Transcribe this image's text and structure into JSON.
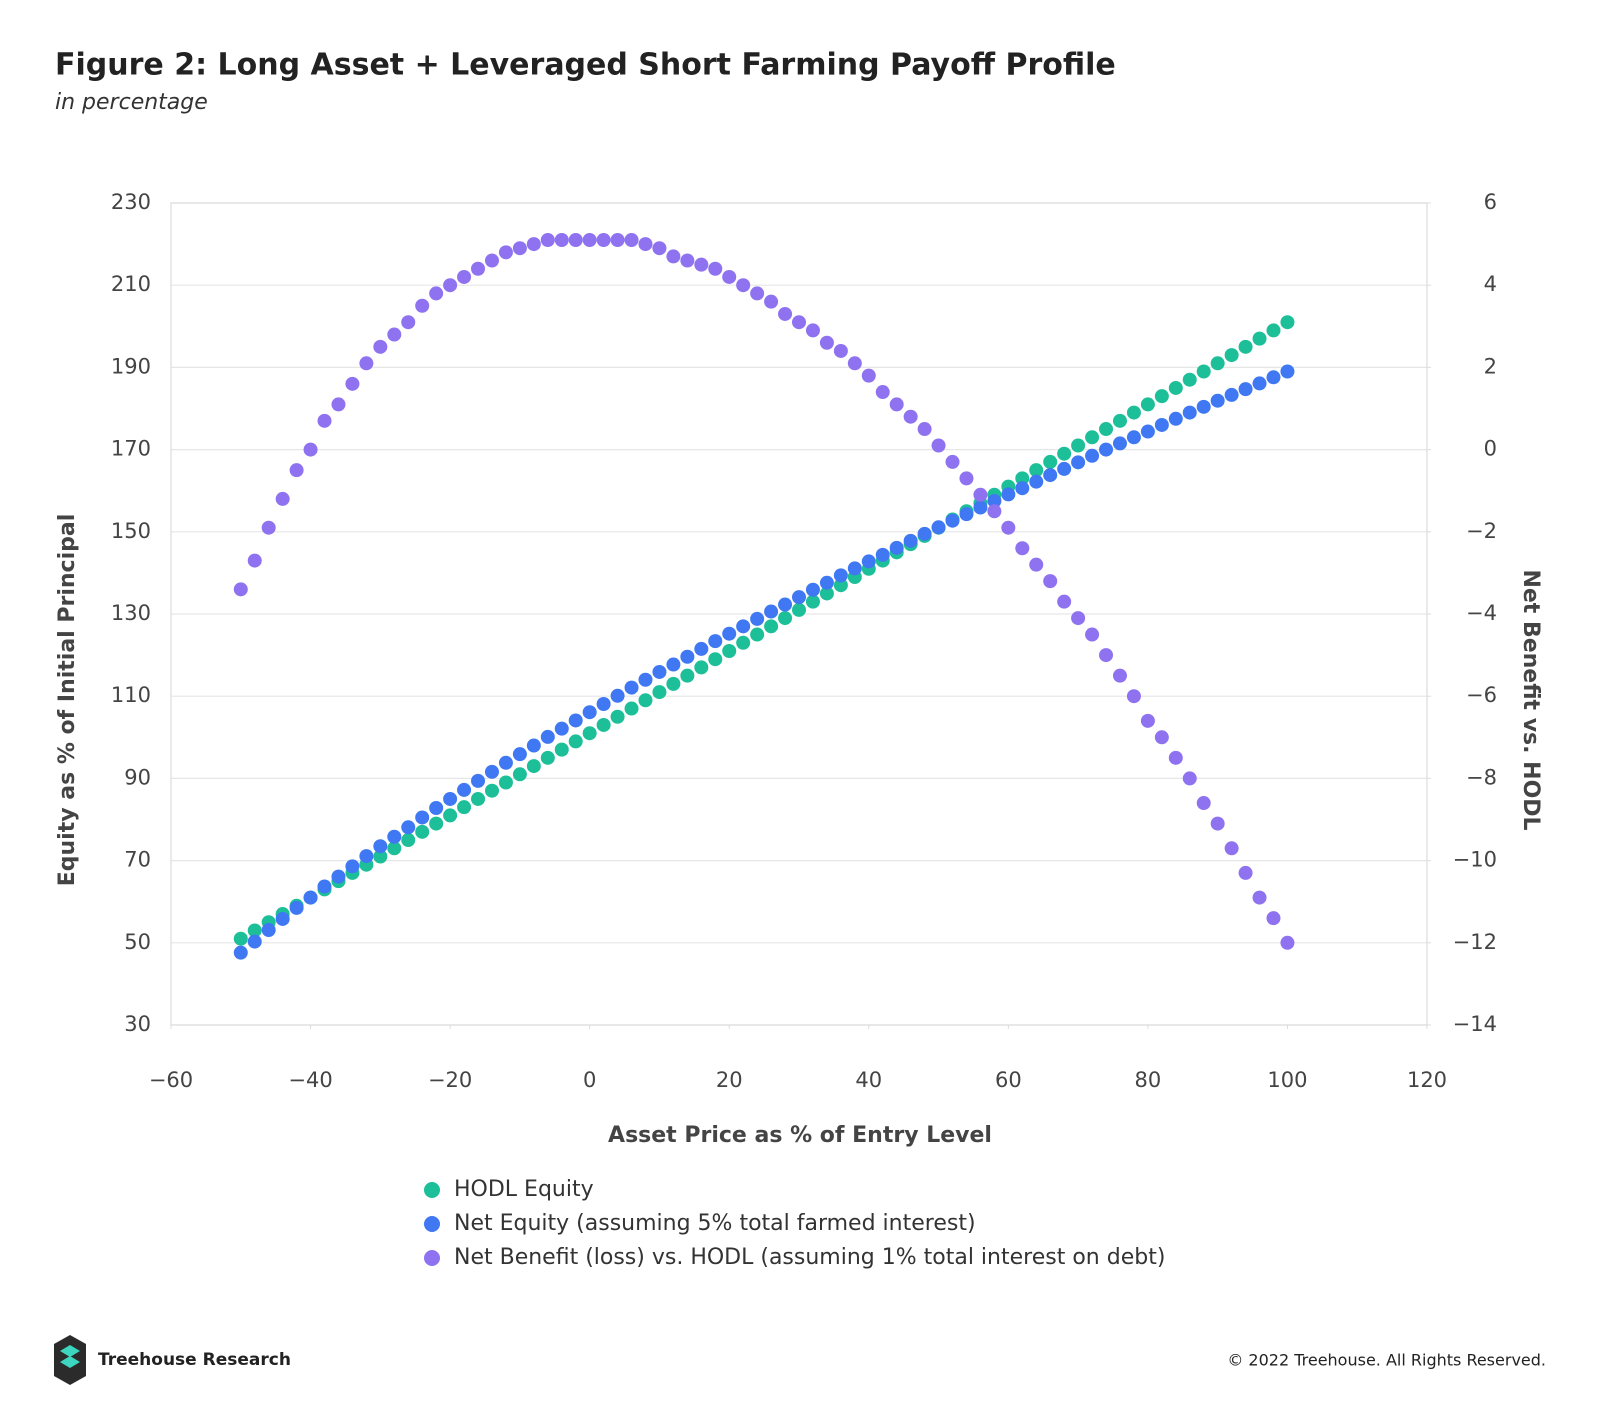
{
  "chart_data": {
    "type": "scatter",
    "title": "Figure 2: Long Asset + Leveraged Short Farming Payoff Profile",
    "subtitle": "in percentage",
    "xlabel": "Asset Price as % of Entry Level",
    "ylabel": "Equity as % of Initial Principal",
    "y2label": "Net Benefit vs. HODL",
    "x": [
      -50,
      -48,
      -46,
      -44,
      -42,
      -40,
      -38,
      -36,
      -34,
      -32,
      -30,
      -28,
      -26,
      -24,
      -22,
      -20,
      -18,
      -16,
      -14,
      -12,
      -10,
      -8,
      -6,
      -4,
      -2,
      0,
      2,
      4,
      6,
      8,
      10,
      12,
      14,
      16,
      18,
      20,
      22,
      24,
      26,
      28,
      30,
      32,
      34,
      36,
      38,
      40,
      42,
      44,
      46,
      48,
      50,
      52,
      54,
      56,
      58,
      60,
      62,
      64,
      66,
      68,
      70,
      72,
      74,
      76,
      78,
      80,
      82,
      84,
      86,
      88,
      90,
      92,
      94,
      96,
      98,
      100
    ],
    "series": [
      {
        "name": "HODL Equity",
        "color": "#1dbf98",
        "values": [
          51,
          53,
          55,
          57,
          59,
          61,
          63,
          65,
          67,
          69,
          71,
          73,
          75,
          77,
          79,
          81,
          83,
          85,
          87,
          89,
          91,
          93,
          95,
          97,
          99,
          101,
          103,
          105,
          107,
          109,
          111,
          113,
          115,
          117,
          119,
          121,
          123,
          125,
          127,
          129,
          131,
          133,
          135,
          137,
          139,
          141,
          143,
          145,
          147,
          149,
          151,
          153,
          155,
          157,
          159,
          161,
          163,
          165,
          167,
          169,
          171,
          173,
          175,
          177,
          179,
          181,
          183,
          185,
          187,
          189,
          191,
          193,
          195,
          197,
          199,
          201
        ]
      },
      {
        "name": "Net Equity (assuming 5% total farmed interest)",
        "color": "#3f78f2",
        "values": [
          47.6,
          50.3,
          53.1,
          55.8,
          58.5,
          61,
          63.7,
          66.1,
          68.6,
          71.1,
          73.5,
          75.8,
          78.1,
          80.5,
          82.8,
          85,
          87.2,
          89.4,
          91.6,
          93.8,
          95.9,
          98,
          100.1,
          102.1,
          104.1,
          106.1,
          108.1,
          110.1,
          112.1,
          114,
          115.9,
          117.7,
          119.6,
          121.5,
          123.4,
          125.2,
          127,
          128.8,
          130.6,
          132.3,
          134.1,
          135.9,
          137.6,
          139.4,
          141.1,
          142.8,
          144.4,
          146.1,
          147.8,
          149.5,
          151.1,
          152.7,
          154.3,
          155.9,
          157.5,
          159.1,
          160.6,
          162.2,
          163.8,
          165.3,
          166.9,
          168.5,
          170,
          171.5,
          173,
          174.4,
          176,
          177.5,
          179,
          180.4,
          181.9,
          183.3,
          184.7,
          186.1,
          187.6,
          189
        ]
      },
      {
        "name": "Net Benefit (loss) vs. HODL (assuming 1% total interest on debt)",
        "color": "#8f72f0",
        "axis": "y2",
        "values": [
          -3.4,
          -2.7,
          -1.9,
          -1.2,
          -0.5,
          0.0,
          0.7,
          1.1,
          1.6,
          2.1,
          2.5,
          2.8,
          3.1,
          3.5,
          3.8,
          4.0,
          4.2,
          4.4,
          4.6,
          4.8,
          4.9,
          5.0,
          5.1,
          5.1,
          5.1,
          5.1,
          5.1,
          5.1,
          5.1,
          5.0,
          4.9,
          4.7,
          4.6,
          4.5,
          4.4,
          4.2,
          4.0,
          3.8,
          3.6,
          3.3,
          3.1,
          2.9,
          2.6,
          2.4,
          2.1,
          1.8,
          1.4,
          1.1,
          0.8,
          0.5,
          0.1,
          -0.3,
          -0.7,
          -1.1,
          -1.5,
          -1.9,
          -2.4,
          -2.8,
          -3.2,
          -3.7,
          -4.1,
          -4.5,
          -5.0,
          -5.5,
          -6.0,
          -6.6,
          -7.0,
          -7.5,
          -8.0,
          -8.6,
          -9.1,
          -9.7,
          -10.3,
          -10.9,
          -11.4,
          -12.0
        ]
      }
    ],
    "xlim": [
      -60,
      120
    ],
    "xticks": [
      {
        "value": -60,
        "label": "−60"
      },
      {
        "value": -40,
        "label": "−40"
      },
      {
        "value": -20,
        "label": "−20"
      },
      0,
      20,
      40,
      60,
      80,
      100,
      120
    ],
    "ylim": [
      30,
      230
    ],
    "yticks": [
      30,
      50,
      70,
      90,
      110,
      130,
      150,
      170,
      190,
      210,
      230
    ],
    "y2lim": [
      -14,
      6
    ],
    "y2ticks": [
      {
        "value": -14,
        "label": "−14"
      },
      {
        "value": -12,
        "label": "−12"
      },
      {
        "value": -10,
        "label": "−10"
      },
      {
        "value": -8,
        "label": "−8"
      },
      {
        "value": -6,
        "label": "−6"
      },
      {
        "value": -4,
        "label": "−4"
      },
      {
        "value": -2,
        "label": "−2"
      },
      0,
      2,
      4,
      6
    ],
    "grid": true,
    "legend": "bottom"
  },
  "footer": {
    "brand": "Treehouse Research",
    "copyright": "© 2022 Treehouse. All Rights Reserved."
  }
}
